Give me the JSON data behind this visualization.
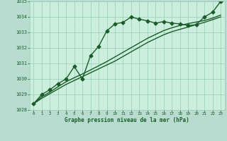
{
  "title": "Graphe pression niveau de la mer (hPa)",
  "background_color": "#b8ddd0",
  "plot_bg_color": "#cceedd",
  "grid_color": "#99ccbb",
  "line_color": "#1a5c2a",
  "x_hours": [
    0,
    1,
    2,
    3,
    4,
    5,
    6,
    7,
    8,
    9,
    10,
    11,
    12,
    13,
    14,
    15,
    16,
    17,
    18,
    19,
    20,
    21,
    22,
    23
  ],
  "pressure_main": [
    1028.4,
    1029.0,
    1029.3,
    1029.7,
    1030.0,
    1030.8,
    1030.0,
    1031.5,
    1032.1,
    1033.1,
    1033.55,
    1033.65,
    1034.0,
    1033.85,
    1033.75,
    1033.6,
    1033.7,
    1033.6,
    1033.55,
    1033.45,
    1033.5,
    1034.0,
    1034.3,
    1035.0
  ],
  "pressure_smooth1": [
    1028.4,
    1028.75,
    1029.05,
    1029.35,
    1029.65,
    1029.9,
    1030.15,
    1030.4,
    1030.65,
    1030.9,
    1031.15,
    1031.45,
    1031.75,
    1032.05,
    1032.35,
    1032.6,
    1032.85,
    1033.05,
    1033.2,
    1033.35,
    1033.5,
    1033.65,
    1033.82,
    1034.0
  ],
  "pressure_smooth2": [
    1028.4,
    1028.85,
    1029.15,
    1029.5,
    1029.82,
    1030.08,
    1030.32,
    1030.58,
    1030.85,
    1031.12,
    1031.42,
    1031.72,
    1032.02,
    1032.32,
    1032.62,
    1032.87,
    1033.12,
    1033.3,
    1033.45,
    1033.57,
    1033.67,
    1033.77,
    1033.92,
    1034.12
  ],
  "ylim": [
    1028,
    1035
  ],
  "yticks": [
    1028,
    1029,
    1030,
    1031,
    1032,
    1033,
    1034,
    1035
  ],
  "xlim": [
    -0.5,
    23.5
  ],
  "xticks": [
    0,
    1,
    2,
    3,
    4,
    5,
    6,
    7,
    8,
    9,
    10,
    11,
    12,
    13,
    14,
    15,
    16,
    17,
    18,
    19,
    20,
    21,
    22,
    23
  ],
  "font_color": "#1a5c2a",
  "marker_style": "D",
  "marker_size": 2.5,
  "line_width": 1.0
}
